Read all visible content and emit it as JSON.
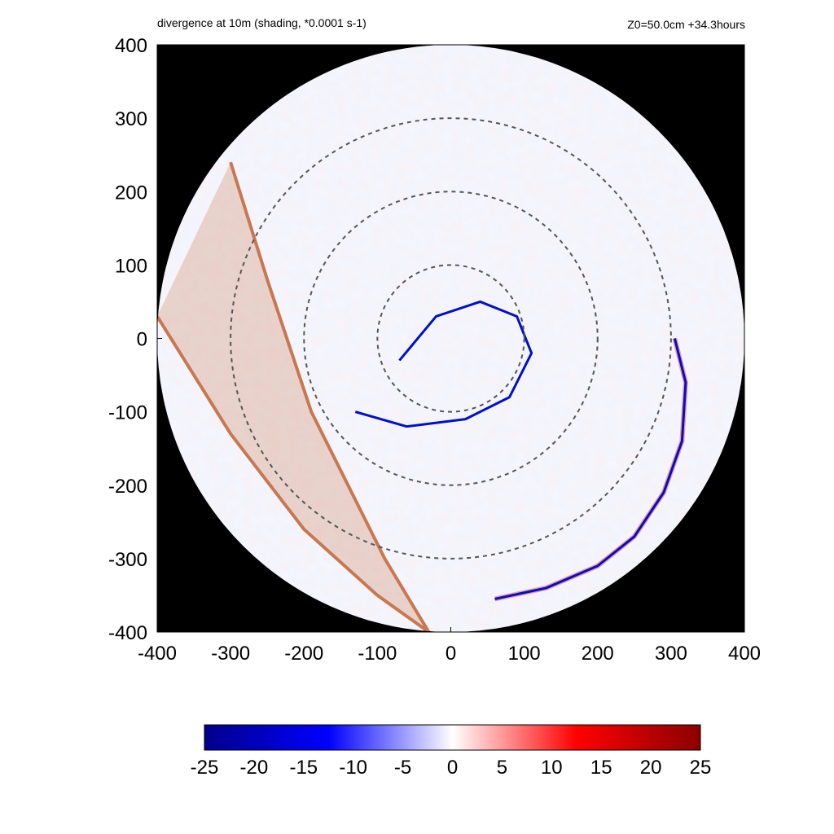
{
  "chart_data": {
    "type": "heatmap",
    "title": "divergence at 10m (shading, *0.0001 s-1)",
    "info": "Z0=50.0cm  +34.3hours",
    "xlim": [
      -400,
      400
    ],
    "ylim": [
      -400,
      400
    ],
    "x_ticks": [
      -400,
      -300,
      -200,
      -100,
      0,
      100,
      200,
      300,
      400
    ],
    "y_ticks": [
      -400,
      -300,
      -200,
      -100,
      0,
      100,
      200,
      300,
      400
    ],
    "domain_radius": 400,
    "outside_domain_color": "#000000",
    "range_rings": [
      100,
      200,
      300
    ],
    "ring_style": "dashed gray",
    "colorbar": {
      "ticks": [
        -25,
        -20,
        -15,
        -10,
        -5,
        0,
        5,
        10,
        15,
        20,
        25
      ],
      "range": [
        -25,
        25
      ],
      "colors": [
        "#00008b",
        "#0000ff",
        "#ffffff",
        "#ff0000",
        "#8b0000"
      ]
    },
    "features": {
      "cold_pool_band": {
        "color": "#c87850",
        "left_edge": [
          [
            -300,
            240
          ],
          [
            -250,
            80
          ],
          [
            -190,
            -100
          ],
          [
            -90,
            -300
          ],
          [
            -30,
            -400
          ]
        ],
        "right_edge": [
          [
            -400,
            30
          ],
          [
            -300,
            -130
          ],
          [
            -200,
            -260
          ],
          [
            -100,
            -350
          ],
          [
            -30,
            -400
          ]
        ]
      },
      "outer_convergence_line": [
        [
          305,
          0
        ],
        [
          320,
          -60
        ],
        [
          315,
          -140
        ],
        [
          290,
          -210
        ],
        [
          250,
          -270
        ],
        [
          200,
          -310
        ],
        [
          130,
          -340
        ],
        [
          60,
          -355
        ]
      ],
      "spiral_band": [
        [
          -70,
          -30
        ],
        [
          -20,
          30
        ],
        [
          40,
          50
        ],
        [
          90,
          30
        ],
        [
          110,
          -20
        ],
        [
          80,
          -80
        ],
        [
          20,
          -110
        ],
        [
          -60,
          -120
        ],
        [
          -130,
          -100
        ]
      ]
    }
  }
}
